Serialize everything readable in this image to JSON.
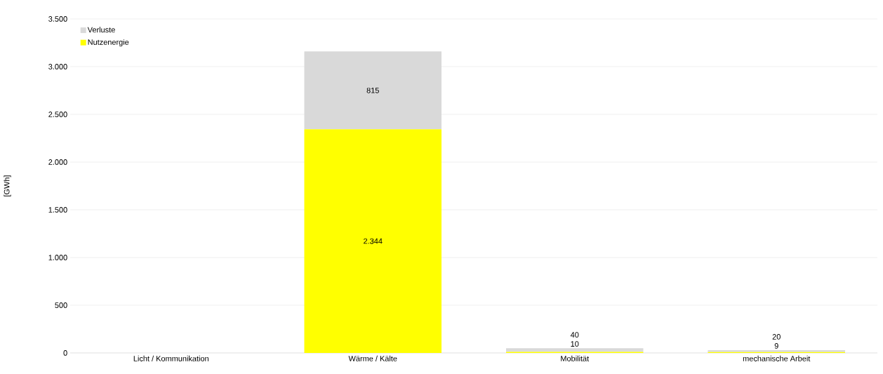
{
  "chart_data": {
    "type": "bar",
    "stacked": true,
    "ylabel": "[GWh]",
    "categories": [
      "Licht / Kommunikation",
      "Wärme / Kälte",
      "Mobilität",
      "mechanische Arbeit"
    ],
    "series": [
      {
        "name": "Nutzenergie",
        "color": "#ffff00",
        "values": [
          null,
          2344,
          10,
          9
        ],
        "value_labels": [
          null,
          "2.344",
          "10",
          "9"
        ]
      },
      {
        "name": "Verluste",
        "color": "#d9d9d9",
        "values": [
          null,
          815,
          40,
          20
        ],
        "value_labels": [
          null,
          "815",
          "40",
          "20"
        ]
      }
    ],
    "ylim": [
      0,
      3500
    ],
    "yticks": [
      0,
      {
        "value": 500,
        "label": "500"
      },
      {
        "value": 1000,
        "label": "1.000"
      },
      {
        "value": 1500,
        "label": "1.500"
      },
      {
        "value": 2000,
        "label": "2.000"
      },
      {
        "value": 2500,
        "label": "2.500"
      },
      {
        "value": 3000,
        "label": "3.000"
      },
      {
        "value": 3500,
        "label": "3.500"
      }
    ],
    "grid": "y",
    "legend": "top left"
  }
}
